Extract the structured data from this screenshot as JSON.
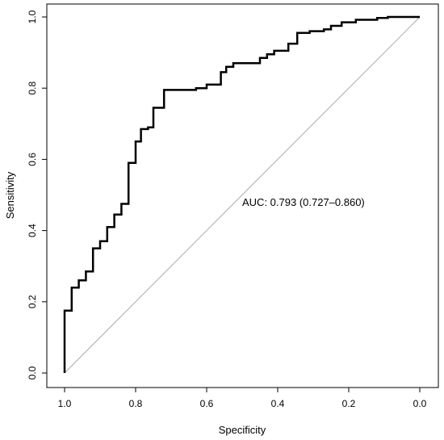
{
  "chart_data": {
    "type": "line",
    "title": "",
    "xlabel": "Specificity",
    "ylabel": "Sensitivity",
    "xlim": [
      1.0,
      0.0
    ],
    "ylim": [
      0.0,
      1.0
    ],
    "x_reversed": true,
    "x_ticks": [
      "1.0",
      "0.8",
      "0.6",
      "0.4",
      "0.2",
      "0.0"
    ],
    "y_ticks": [
      "0.0",
      "0.2",
      "0.4",
      "0.6",
      "0.8",
      "1.0"
    ],
    "grid": false,
    "legend": "none",
    "annotation": "AUC: 0.793 (0.727–0.860)",
    "reference_line": {
      "from": [
        1.0,
        0.0
      ],
      "to": [
        0.0,
        1.0
      ],
      "color": "#aaaaaa"
    },
    "series": [
      {
        "color": "#000000",
        "points": [
          [
            1.0,
            0.0
          ],
          [
            1.0,
            0.175
          ],
          [
            0.98,
            0.175
          ],
          [
            0.98,
            0.24
          ],
          [
            0.96,
            0.24
          ],
          [
            0.96,
            0.26
          ],
          [
            0.94,
            0.26
          ],
          [
            0.94,
            0.285
          ],
          [
            0.92,
            0.285
          ],
          [
            0.92,
            0.35
          ],
          [
            0.9,
            0.35
          ],
          [
            0.9,
            0.37
          ],
          [
            0.88,
            0.37
          ],
          [
            0.88,
            0.41
          ],
          [
            0.86,
            0.41
          ],
          [
            0.86,
            0.445
          ],
          [
            0.84,
            0.445
          ],
          [
            0.84,
            0.475
          ],
          [
            0.82,
            0.475
          ],
          [
            0.82,
            0.59
          ],
          [
            0.8,
            0.59
          ],
          [
            0.8,
            0.65
          ],
          [
            0.785,
            0.65
          ],
          [
            0.785,
            0.685
          ],
          [
            0.765,
            0.685
          ],
          [
            0.765,
            0.69
          ],
          [
            0.75,
            0.69
          ],
          [
            0.75,
            0.745
          ],
          [
            0.72,
            0.745
          ],
          [
            0.72,
            0.795
          ],
          [
            0.63,
            0.795
          ],
          [
            0.63,
            0.8
          ],
          [
            0.6,
            0.8
          ],
          [
            0.6,
            0.81
          ],
          [
            0.56,
            0.81
          ],
          [
            0.56,
            0.845
          ],
          [
            0.545,
            0.845
          ],
          [
            0.545,
            0.86
          ],
          [
            0.525,
            0.86
          ],
          [
            0.525,
            0.87
          ],
          [
            0.45,
            0.87
          ],
          [
            0.45,
            0.885
          ],
          [
            0.43,
            0.885
          ],
          [
            0.43,
            0.895
          ],
          [
            0.41,
            0.895
          ],
          [
            0.41,
            0.905
          ],
          [
            0.37,
            0.905
          ],
          [
            0.37,
            0.925
          ],
          [
            0.345,
            0.925
          ],
          [
            0.345,
            0.955
          ],
          [
            0.31,
            0.955
          ],
          [
            0.31,
            0.96
          ],
          [
            0.27,
            0.96
          ],
          [
            0.27,
            0.965
          ],
          [
            0.25,
            0.965
          ],
          [
            0.25,
            0.975
          ],
          [
            0.22,
            0.975
          ],
          [
            0.22,
            0.985
          ],
          [
            0.18,
            0.985
          ],
          [
            0.18,
            0.992
          ],
          [
            0.12,
            0.992
          ],
          [
            0.12,
            0.997
          ],
          [
            0.09,
            0.997
          ],
          [
            0.09,
            1.0
          ],
          [
            0.0,
            1.0
          ]
        ]
      }
    ]
  }
}
